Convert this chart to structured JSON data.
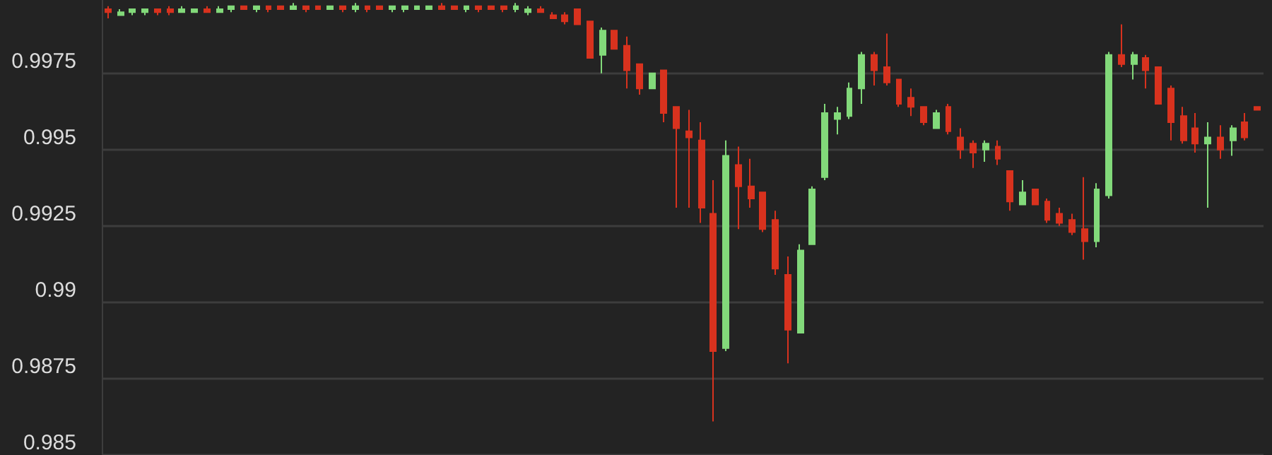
{
  "chart_data": {
    "type": "candlestick",
    "categories": [
      null,
      null,
      null,
      null,
      null,
      null,
      null,
      null,
      null,
      null,
      null,
      null,
      null,
      null,
      null,
      null,
      null,
      null,
      null,
      null,
      null,
      null,
      null,
      null,
      null,
      null,
      null,
      null,
      null,
      null,
      null,
      null,
      null,
      null,
      null,
      null,
      null,
      null,
      null,
      null,
      null,
      null,
      null,
      null,
      null,
      null,
      null,
      null,
      null,
      null,
      null,
      null,
      null,
      null,
      null,
      null,
      null,
      null,
      null,
      null,
      null,
      null,
      null,
      null,
      null,
      null,
      null,
      null,
      null,
      null,
      null,
      null,
      null,
      null,
      null,
      null,
      null,
      null,
      null,
      null,
      null,
      null,
      null,
      null,
      null,
      null,
      null,
      null,
      null,
      null,
      null,
      null,
      null,
      null
    ],
    "ohlc": [
      [
        0.9996,
        0.9997,
        0.9993,
        0.9995
      ],
      [
        0.9994,
        0.9996,
        0.9994,
        0.9995
      ],
      [
        0.9995,
        0.9996,
        0.9994,
        0.9996
      ],
      [
        0.9995,
        0.9996,
        0.9994,
        0.9996
      ],
      [
        0.9996,
        0.9996,
        0.9994,
        0.9995
      ],
      [
        0.9996,
        0.9997,
        0.9994,
        0.9995
      ],
      [
        0.9995,
        0.9997,
        0.9995,
        0.9996
      ],
      [
        0.9995,
        0.9996,
        0.9995,
        0.9996
      ],
      [
        0.9996,
        0.9997,
        0.9995,
        0.9995
      ],
      [
        0.9995,
        0.9997,
        0.9995,
        0.9996
      ],
      [
        0.9996,
        0.9997,
        0.9995,
        0.9997
      ],
      [
        0.9997,
        0.9997,
        0.9996,
        0.9996
      ],
      [
        0.9996,
        0.9997,
        0.9995,
        0.9997
      ],
      [
        0.9997,
        0.9997,
        0.9995,
        0.9996
      ],
      [
        0.9997,
        0.9997,
        0.9996,
        0.9996
      ],
      [
        0.9996,
        0.9998,
        0.9996,
        0.9997
      ],
      [
        0.9997,
        0.9997,
        0.9995,
        0.9996
      ],
      [
        0.9997,
        0.9997,
        0.9996,
        0.9996
      ],
      [
        0.9996,
        0.9997,
        0.9996,
        0.9997
      ],
      [
        0.9997,
        0.9997,
        0.9995,
        0.9996
      ],
      [
        0.9996,
        0.9998,
        0.9995,
        0.9997
      ],
      [
        0.9997,
        0.9997,
        0.9995,
        0.9996
      ],
      [
        0.9997,
        0.9997,
        0.9996,
        0.9996
      ],
      [
        0.9996,
        0.9997,
        0.9995,
        0.9997
      ],
      [
        0.9996,
        0.9997,
        0.9995,
        0.9997
      ],
      [
        0.9996,
        0.9997,
        0.9996,
        0.9997
      ],
      [
        0.9996,
        0.9997,
        0.9996,
        0.9997
      ],
      [
        0.9997,
        0.9998,
        0.9996,
        0.9996
      ],
      [
        0.9997,
        0.9997,
        0.9996,
        0.9996
      ],
      [
        0.9996,
        0.9997,
        0.9995,
        0.9997
      ],
      [
        0.9997,
        0.9997,
        0.9995,
        0.9996
      ],
      [
        0.9997,
        0.9997,
        0.9996,
        0.9996
      ],
      [
        0.9997,
        0.9997,
        0.9995,
        0.9996
      ],
      [
        0.9996,
        0.9998,
        0.9995,
        0.9997
      ],
      [
        0.9995,
        0.9997,
        0.9994,
        0.9996
      ],
      [
        0.9996,
        0.9997,
        0.9995,
        0.9995
      ],
      [
        0.9994,
        0.9995,
        0.9993,
        0.9993
      ],
      [
        0.9994,
        0.9995,
        0.9991,
        0.9992
      ],
      [
        0.9996,
        0.9996,
        0.9991,
        0.9991
      ],
      [
        0.9992,
        0.9992,
        0.998,
        0.998
      ],
      [
        0.9981,
        0.999,
        0.9975,
        0.9989
      ],
      [
        0.9989,
        0.9989,
        0.9983,
        0.9983
      ],
      [
        0.9984,
        0.9987,
        0.997,
        0.9976
      ],
      [
        0.9978,
        0.9978,
        0.9968,
        0.997
      ],
      [
        0.997,
        0.9975,
        0.997,
        0.9975
      ],
      [
        0.9976,
        0.9976,
        0.9959,
        0.9962
      ],
      [
        0.9964,
        0.9964,
        0.9931,
        0.9957
      ],
      [
        0.9956,
        0.9963,
        0.9931,
        0.9954
      ],
      [
        0.9953,
        0.9959,
        0.9926,
        0.9931
      ],
      [
        0.9929,
        0.994,
        0.9861,
        0.9884
      ],
      [
        0.9885,
        0.9953,
        0.9884,
        0.9948
      ],
      [
        0.9945,
        0.9951,
        0.9924,
        0.9938
      ],
      [
        0.9938,
        0.9947,
        0.9931,
        0.9934
      ],
      [
        0.9936,
        0.9936,
        0.9923,
        0.9924
      ],
      [
        0.9927,
        0.993,
        0.9909,
        0.9911
      ],
      [
        0.9909,
        0.9915,
        0.988,
        0.9891
      ],
      [
        0.989,
        0.9919,
        0.989,
        0.9917
      ],
      [
        0.9919,
        0.9938,
        0.9919,
        0.9937
      ],
      [
        0.9941,
        0.9965,
        0.994,
        0.9962
      ],
      [
        0.996,
        0.9964,
        0.9955,
        0.9962
      ],
      [
        0.9961,
        0.9972,
        0.996,
        0.997
      ],
      [
        0.997,
        0.9982,
        0.9965,
        0.9981
      ],
      [
        0.9981,
        0.9982,
        0.9971,
        0.9976
      ],
      [
        0.9977,
        0.9988,
        0.9971,
        0.9972
      ],
      [
        0.9973,
        0.9973,
        0.9964,
        0.9965
      ],
      [
        0.9967,
        0.997,
        0.9961,
        0.9964
      ],
      [
        0.9964,
        0.9964,
        0.9958,
        0.9959
      ],
      [
        0.9957,
        0.9963,
        0.9957,
        0.9962
      ],
      [
        0.9964,
        0.9965,
        0.9955,
        0.9956
      ],
      [
        0.9954,
        0.9957,
        0.9947,
        0.995
      ],
      [
        0.9952,
        0.9953,
        0.9944,
        0.9949
      ],
      [
        0.995,
        0.9953,
        0.9946,
        0.9952
      ],
      [
        0.9951,
        0.9953,
        0.9945,
        0.9947
      ],
      [
        0.9943,
        0.9943,
        0.993,
        0.9933
      ],
      [
        0.9932,
        0.994,
        0.9932,
        0.9936
      ],
      [
        0.9937,
        0.9937,
        0.9932,
        0.9932
      ],
      [
        0.9933,
        0.9934,
        0.9926,
        0.9927
      ],
      [
        0.9929,
        0.9931,
        0.9925,
        0.9926
      ],
      [
        0.9927,
        0.9929,
        0.9922,
        0.9923
      ],
      [
        0.9924,
        0.9941,
        0.9914,
        0.992
      ],
      [
        0.992,
        0.9939,
        0.9918,
        0.9937
      ],
      [
        0.9935,
        0.9982,
        0.9934,
        0.9981
      ],
      [
        0.9981,
        0.9991,
        0.9977,
        0.9978
      ],
      [
        0.9978,
        0.9982,
        0.9973,
        0.9981
      ],
      [
        0.998,
        0.9981,
        0.997,
        0.9976
      ],
      [
        0.9977,
        0.9977,
        0.9965,
        0.9965
      ],
      [
        0.997,
        0.9971,
        0.9953,
        0.9959
      ],
      [
        0.9961,
        0.9964,
        0.9952,
        0.9953
      ],
      [
        0.9957,
        0.9962,
        0.9949,
        0.9952
      ],
      [
        0.9952,
        0.9959,
        0.9931,
        0.9954
      ],
      [
        0.9954,
        0.9958,
        0.9947,
        0.995
      ],
      [
        0.9953,
        0.9958,
        0.9948,
        0.9957
      ],
      [
        0.9959,
        0.9962,
        0.9953,
        0.9954
      ],
      [
        0.9964,
        0.9964,
        0.9963,
        0.9963
      ]
    ],
    "colors": [
      "#d8321e",
      "#82d97a",
      "#82d97a",
      "#82d97a",
      "#d8321e",
      "#d8321e",
      "#82d97a",
      "#82d97a",
      "#d8321e",
      "#82d97a",
      "#82d97a",
      "#d8321e",
      "#82d97a",
      "#d8321e",
      "#d8321e",
      "#82d97a",
      "#d8321e",
      "#d8321e",
      "#82d97a",
      "#d8321e",
      "#82d97a",
      "#d8321e",
      "#d8321e",
      "#82d97a",
      "#82d97a",
      "#82d97a",
      "#82d97a",
      "#d8321e",
      "#d8321e",
      "#82d97a",
      "#d8321e",
      "#d8321e",
      "#d8321e",
      "#82d97a",
      "#82d97a",
      "#d8321e",
      "#d8321e",
      "#d8321e",
      "#d8321e",
      "#d8321e",
      "#82d97a",
      "#d8321e",
      "#d8321e",
      "#d8321e",
      "#82d97a",
      "#d8321e",
      "#d8321e",
      "#d8321e",
      "#d8321e",
      "#d8321e",
      "#82d97a",
      "#d8321e",
      "#d8321e",
      "#d8321e",
      "#d8321e",
      "#d8321e",
      "#82d97a",
      "#82d97a",
      "#82d97a",
      "#82d97a",
      "#82d97a",
      "#82d97a",
      "#d8321e",
      "#d8321e",
      "#d8321e",
      "#d8321e",
      "#d8321e",
      "#82d97a",
      "#d8321e",
      "#d8321e",
      "#d8321e",
      "#82d97a",
      "#d8321e",
      "#d8321e",
      "#82d97a",
      "#d8321e",
      "#d8321e",
      "#d8321e",
      "#d8321e",
      "#d8321e",
      "#82d97a",
      "#82d97a",
      "#d8321e",
      "#82d97a",
      "#d8321e",
      "#d8321e",
      "#d8321e",
      "#d8321e",
      "#d8321e",
      "#82d97a",
      "#d8321e",
      "#82d97a",
      "#d8321e",
      "#d8321e"
    ],
    "ylim": [
      0.985,
      0.9999
    ],
    "yticks": [
      0.985,
      0.9875,
      0.99,
      0.9925,
      0.995,
      0.9975
    ],
    "grid": "y",
    "tick_labels": "y"
  }
}
